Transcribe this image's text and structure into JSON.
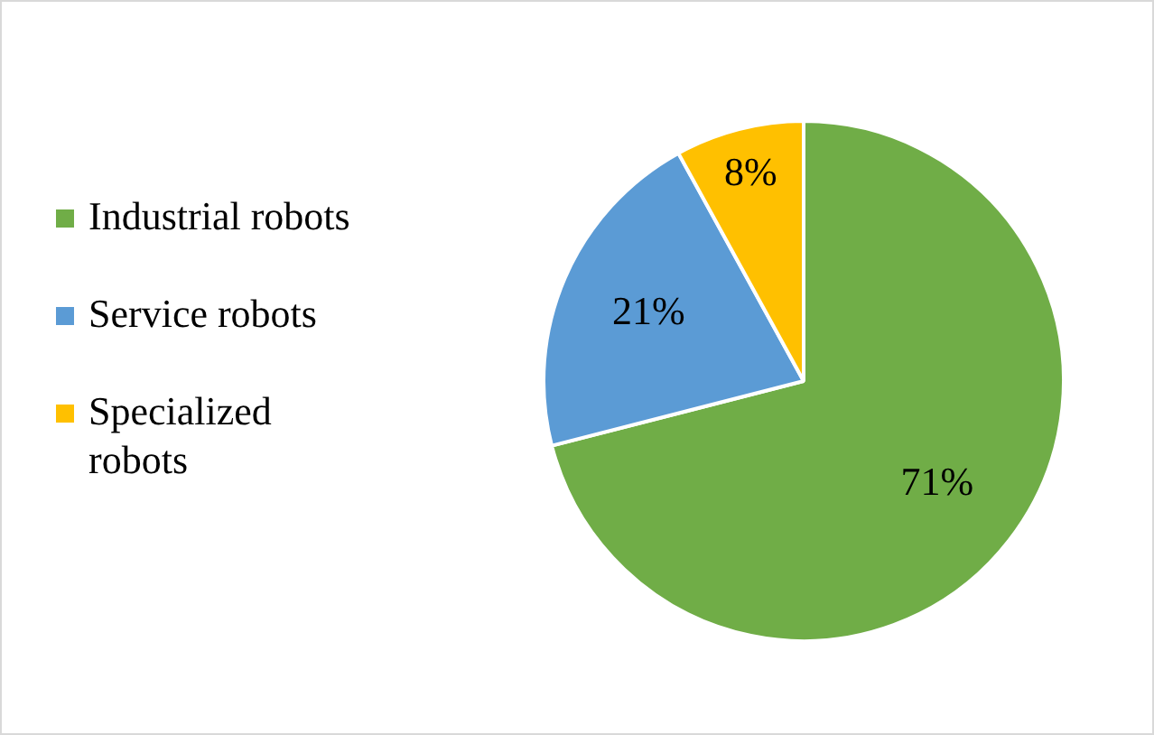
{
  "chart_data": {
    "type": "pie",
    "categories": [
      "Industrial robots",
      "Service robots",
      "Specialized robots"
    ],
    "values": [
      71,
      21,
      8
    ],
    "colors": [
      "#70ad47",
      "#5b9bd5",
      "#ffc000"
    ],
    "value_labels": [
      "71%",
      "21%",
      "8%"
    ],
    "legend": "left"
  }
}
